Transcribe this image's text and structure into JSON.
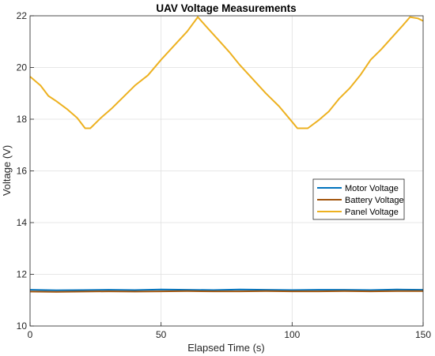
{
  "chart_data": {
    "type": "line",
    "title": "UAV Voltage Measurements",
    "xlabel": "Elapsed Time (s)",
    "ylabel": "Voltage (V)",
    "xlim": [
      0,
      150
    ],
    "ylim": [
      10,
      22
    ],
    "xticks": [
      0,
      50,
      100,
      150
    ],
    "yticks": [
      10,
      12,
      14,
      16,
      18,
      20,
      22
    ],
    "grid": true,
    "legend_position": "right",
    "series": [
      {
        "name": "Motor Voltage",
        "color": "#0072BD",
        "x": [
          0,
          10,
          20,
          30,
          40,
          50,
          60,
          70,
          80,
          90,
          100,
          110,
          120,
          130,
          140,
          150
        ],
        "y": [
          11.4,
          11.38,
          11.39,
          11.4,
          11.39,
          11.41,
          11.4,
          11.39,
          11.41,
          11.4,
          11.39,
          11.4,
          11.4,
          11.39,
          11.41,
          11.4
        ]
      },
      {
        "name": "Battery Voltage",
        "color": "#A2560E",
        "x": [
          0,
          10,
          20,
          30,
          40,
          50,
          60,
          70,
          80,
          90,
          100,
          110,
          120,
          130,
          140,
          150
        ],
        "y": [
          11.33,
          11.32,
          11.33,
          11.34,
          11.33,
          11.34,
          11.35,
          11.34,
          11.34,
          11.35,
          11.34,
          11.34,
          11.35,
          11.34,
          11.35,
          11.35
        ]
      },
      {
        "name": "Panel Voltage",
        "color": "#EDB120",
        "x": [
          0,
          4,
          7,
          10,
          14,
          18,
          21,
          23,
          27,
          31,
          35,
          40,
          45,
          50,
          55,
          60,
          64,
          68,
          72,
          76,
          80,
          85,
          90,
          95,
          100,
          102,
          106,
          110,
          114,
          118,
          122,
          126,
          130,
          134,
          138,
          142,
          145,
          148,
          150
        ],
        "y": [
          19.65,
          19.3,
          18.9,
          18.7,
          18.4,
          18.05,
          17.65,
          17.65,
          18.05,
          18.4,
          18.8,
          19.3,
          19.7,
          20.3,
          20.85,
          21.4,
          21.95,
          21.5,
          21.05,
          20.6,
          20.1,
          19.55,
          19.0,
          18.5,
          17.9,
          17.65,
          17.65,
          17.95,
          18.3,
          18.8,
          19.2,
          19.7,
          20.3,
          20.7,
          21.15,
          21.6,
          21.95,
          21.9,
          21.8
        ]
      }
    ]
  }
}
